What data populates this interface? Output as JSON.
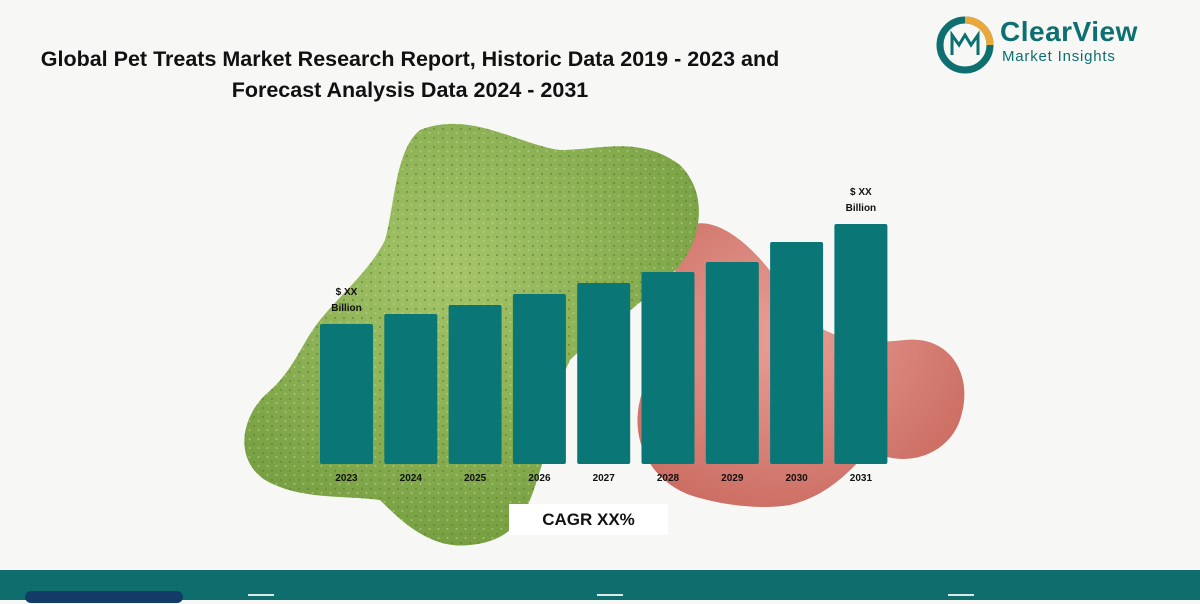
{
  "title": "Global Pet Treats Market Research Report, Historic Data 2019 - 2023 and Forecast Analysis Data 2024 - 2031",
  "logo": {
    "name": "ClearView",
    "subtitle": "Market Insights",
    "icon": "clearview-cm-logo"
  },
  "cagr_label": "CAGR XX%",
  "colors": {
    "bar": "#0a7676",
    "footer": "#0e6e6e",
    "brand": "#0d6f6f",
    "logo_ring_orange": "#e8a83a"
  },
  "chart_data": {
    "type": "bar",
    "categories": [
      "2023",
      "2024",
      "2025",
      "2026",
      "2027",
      "2028",
      "2029",
      "2030",
      "2031"
    ],
    "values": [
      140,
      150,
      159,
      170,
      181,
      192,
      202,
      222,
      240
    ],
    "value_note": "relative bar heights; actual values shown as placeholders",
    "annotations": [
      {
        "category": "2023",
        "text": [
          "$ XX",
          "Billion"
        ]
      },
      {
        "category": "2031",
        "text": [
          "$ XX",
          "Billion"
        ]
      }
    ],
    "title": "",
    "xlabel": "",
    "ylabel": "",
    "ylim": [
      0,
      240
    ],
    "grid": false,
    "legend": "none"
  },
  "footer": {
    "icons": [
      "globe-icon",
      "mail-icon",
      "phone-icon"
    ]
  }
}
